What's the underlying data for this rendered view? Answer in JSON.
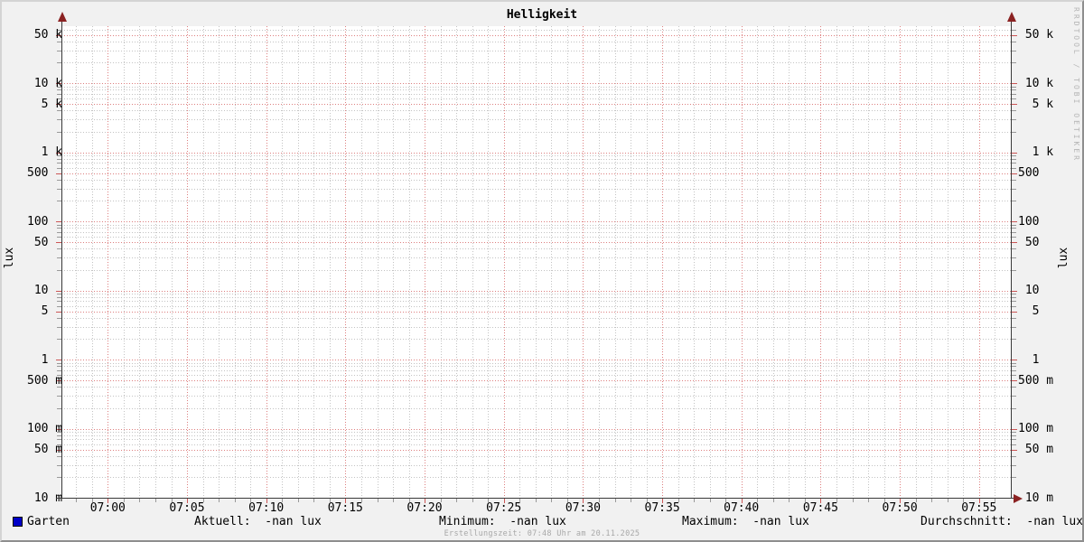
{
  "title": "Helligkeit",
  "watermark": "RRDTOOL / TOBI OETIKER",
  "footer": "Erstellungszeit: 07:48 Uhr am 20.11.2025",
  "y_axis": {
    "left_label": "lux",
    "right_label": "lux"
  },
  "legend": {
    "series_label": "Garten",
    "series_color": "#0000c8",
    "stats": [
      {
        "text": "Aktuell:  -nan lux"
      },
      {
        "text": "Minimum:  -nan lux"
      },
      {
        "text": "Maximum:  -nan lux"
      },
      {
        "text": "Durchschnitt:  -nan lux"
      }
    ]
  },
  "chart_data": {
    "type": "line",
    "title": "Helligkeit",
    "ylabel": "lux",
    "y_scale": "log",
    "ylim": [
      0.01,
      70000
    ],
    "grid": true,
    "x_ticks": [
      "07:00",
      "07:05",
      "07:10",
      "07:15",
      "07:20",
      "07:25",
      "07:30",
      "07:35",
      "07:40",
      "07:45",
      "07:50",
      "07:55"
    ],
    "y_ticks": [
      {
        "label": " 50 k",
        "value": 50000
      },
      {
        "label": " 10 k",
        "value": 10000
      },
      {
        "label": "  5 k",
        "value": 5000
      },
      {
        "label": "  1 k",
        "value": 1000
      },
      {
        "label": "500",
        "value": 500
      },
      {
        "label": "100",
        "value": 100
      },
      {
        "label": " 50",
        "value": 50
      },
      {
        "label": " 10",
        "value": 10
      },
      {
        "label": "  5",
        "value": 5
      },
      {
        "label": "  1",
        "value": 1
      },
      {
        "label": "500 m",
        "value": 0.5
      },
      {
        "label": "100 m",
        "value": 0.1
      },
      {
        "label": " 50 m",
        "value": 0.05
      },
      {
        "label": " 10 m",
        "value": 0.01
      }
    ],
    "series": [
      {
        "name": "Garten",
        "color": "#0000c8",
        "values": []
      }
    ],
    "stats": {
      "aktuell": "-nan lux",
      "minimum": "-nan lux",
      "maximum": "-nan lux",
      "durchschnitt": "-nan lux"
    }
  }
}
